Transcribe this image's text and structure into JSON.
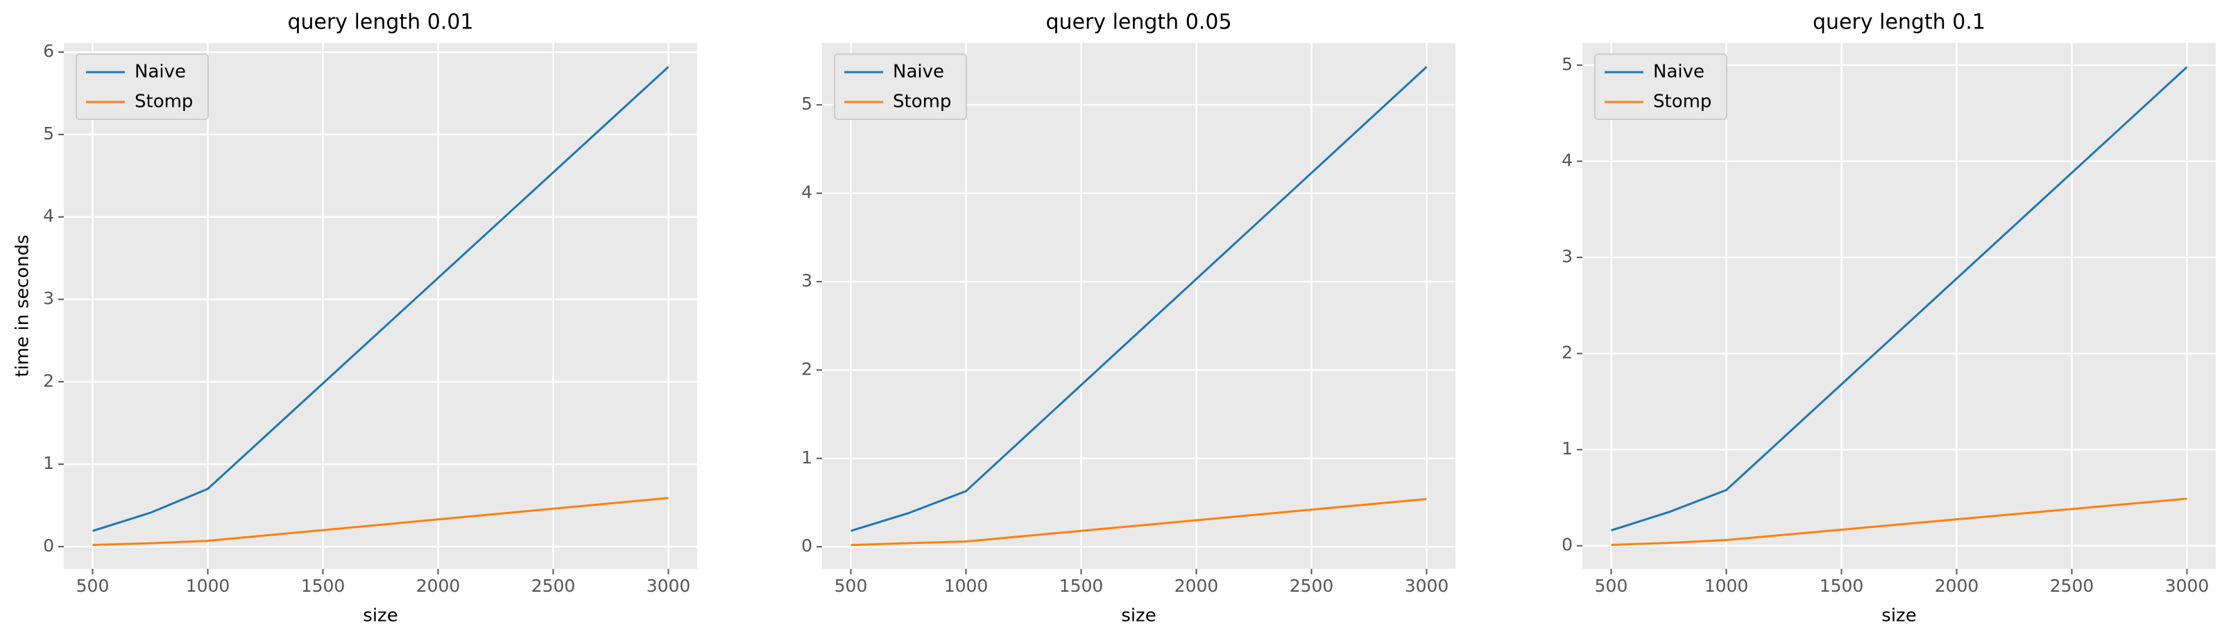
{
  "chart_data": [
    {
      "type": "line",
      "title": "query length 0.01",
      "xlabel": "size",
      "ylabel": "time in seconds",
      "x": [
        500,
        750,
        1000,
        3000
      ],
      "series": [
        {
          "name": "Naive",
          "color": "#1f77b4",
          "values": [
            0.19,
            0.41,
            0.7,
            5.82
          ]
        },
        {
          "name": "Stomp",
          "color": "#ff7f0e",
          "values": [
            0.02,
            0.04,
            0.07,
            0.59
          ]
        }
      ],
      "xlim": [
        375,
        3125
      ],
      "ylim": [
        -0.27,
        6.11
      ],
      "xticks": [
        500,
        1000,
        1500,
        2000,
        2500,
        3000
      ],
      "yticks": [
        0,
        1,
        2,
        3,
        4,
        5,
        6
      ],
      "grid": true,
      "legend": "upper-left"
    },
    {
      "type": "line",
      "title": "query length 0.05",
      "xlabel": "size",
      "x": [
        500,
        750,
        1000,
        3000
      ],
      "series": [
        {
          "name": "Naive",
          "color": "#1f77b4",
          "values": [
            0.18,
            0.38,
            0.63,
            5.43
          ]
        },
        {
          "name": "Stomp",
          "color": "#ff7f0e",
          "values": [
            0.02,
            0.04,
            0.06,
            0.54
          ]
        }
      ],
      "xlim": [
        375,
        3125
      ],
      "ylim": [
        -0.25,
        5.7
      ],
      "xticks": [
        500,
        1000,
        1500,
        2000,
        2500,
        3000
      ],
      "yticks": [
        0,
        1,
        2,
        3,
        4,
        5
      ],
      "grid": true,
      "legend": "upper-left"
    },
    {
      "type": "line",
      "title": "query length 0.1",
      "xlabel": "size",
      "x": [
        500,
        750,
        1000,
        3000
      ],
      "series": [
        {
          "name": "Naive",
          "color": "#1f77b4",
          "values": [
            0.16,
            0.35,
            0.58,
            4.98
          ]
        },
        {
          "name": "Stomp",
          "color": "#ff7f0e",
          "values": [
            0.01,
            0.03,
            0.06,
            0.49
          ]
        }
      ],
      "xlim": [
        375,
        3125
      ],
      "ylim": [
        -0.24,
        5.23
      ],
      "xticks": [
        500,
        1000,
        1500,
        2000,
        2500,
        3000
      ],
      "yticks": [
        0,
        1,
        2,
        3,
        4,
        5
      ],
      "grid": true,
      "legend": "upper-left"
    }
  ]
}
